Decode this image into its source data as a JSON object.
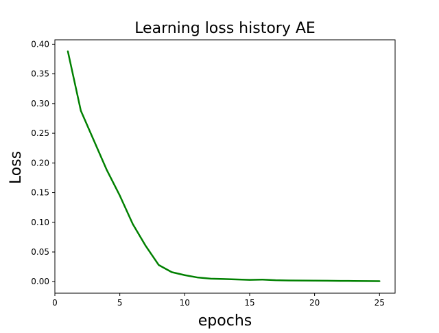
{
  "chart_data": {
    "type": "line",
    "title": "Learning loss history AE",
    "xlabel": "epochs",
    "ylabel": "Loss",
    "xlim": [
      0,
      26.2
    ],
    "ylim": [
      -0.0194,
      0.4074
    ],
    "xticks": [
      0,
      5,
      10,
      15,
      20,
      25
    ],
    "yticks": [
      0.0,
      0.05,
      0.1,
      0.15,
      0.2,
      0.25,
      0.3,
      0.35,
      0.4
    ],
    "ytick_decimals": 2,
    "grid": false,
    "legend": "none",
    "line_color": "#008000",
    "series": [
      {
        "x": [
          1,
          2,
          3,
          4,
          5,
          6,
          7,
          8,
          9,
          10,
          11,
          12,
          13,
          14,
          15,
          16,
          17,
          18,
          19,
          20,
          21,
          22,
          23,
          24,
          25
        ],
        "values": [
          0.388,
          0.288,
          0.238,
          0.188,
          0.145,
          0.097,
          0.06,
          0.028,
          0.016,
          0.011,
          0.007,
          0.005,
          0.0045,
          0.0037,
          0.003,
          0.0035,
          0.0025,
          0.002,
          0.0018,
          0.0017,
          0.0015,
          0.0013,
          0.0012,
          0.001,
          0.0008
        ]
      }
    ]
  }
}
